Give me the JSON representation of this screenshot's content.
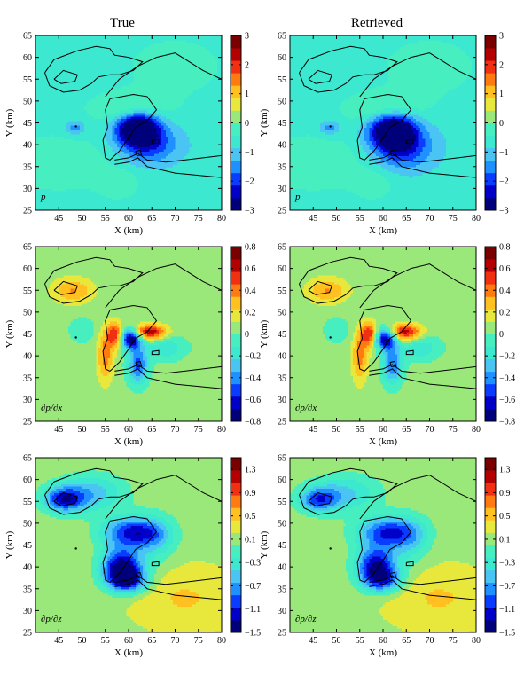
{
  "columns": [
    "True",
    "Retrieved"
  ],
  "chart_data": [
    {
      "type": "heatmap",
      "row": 0,
      "column": "True",
      "panel_label": "p",
      "xlabel": "X (km)",
      "ylabel": "Y (km)",
      "xlim": [
        40,
        80
      ],
      "ylim": [
        25,
        65
      ],
      "x_ticks": [
        "45",
        "50",
        "55",
        "60",
        "65",
        "70",
        "75",
        "80"
      ],
      "y_ticks": [
        "25",
        "30",
        "35",
        "40",
        "45",
        "50",
        "55",
        "60",
        "65"
      ],
      "colorbar": {
        "min": -3,
        "max": 3,
        "ticks": [
          "3",
          "2",
          "1",
          "0",
          "−1",
          "−2",
          "−3"
        ]
      },
      "background_value": -0.7,
      "blobs": [
        {
          "x": 62,
          "y": 44,
          "sx": 3.2,
          "sy": 2.5,
          "amp": -3.1
        },
        {
          "x": 64,
          "y": 40,
          "sx": 4.5,
          "sy": 3,
          "amp": -1.4
        },
        {
          "x": 48.5,
          "y": 44,
          "sx": 1.5,
          "sy": 1.2,
          "amp": -0.9
        },
        {
          "x": 60,
          "y": 48.5,
          "sx": 6,
          "sy": 2.5,
          "amp": 0.8
        },
        {
          "x": 45,
          "y": 36,
          "sx": 10,
          "sy": 5,
          "amp": 0.6
        },
        {
          "x": 70,
          "y": 58,
          "sx": 9,
          "sy": 6,
          "amp": 0.45
        },
        {
          "x": 58,
          "y": 31,
          "sx": 3,
          "sy": 2.5,
          "amp": 0.5
        }
      ]
    },
    {
      "type": "heatmap",
      "row": 0,
      "column": "Retrieved",
      "panel_label": "p",
      "xlabel": "X (km)",
      "ylabel": "Y (km)",
      "xlim": [
        40,
        80
      ],
      "ylim": [
        25,
        65
      ],
      "x_ticks": [
        "45",
        "50",
        "55",
        "60",
        "65",
        "70",
        "75",
        "80"
      ],
      "y_ticks": [
        "25",
        "30",
        "35",
        "40",
        "45",
        "50",
        "55",
        "60",
        "65"
      ],
      "colorbar": {
        "min": -3,
        "max": 3,
        "ticks": [
          "3",
          "2",
          "1",
          "0",
          "−1",
          "−2",
          "−3"
        ]
      },
      "background_value": -0.7,
      "blobs": [
        {
          "x": 62,
          "y": 43.5,
          "sx": 3.3,
          "sy": 2.7,
          "amp": -3.0
        },
        {
          "x": 64,
          "y": 39.5,
          "sx": 4.5,
          "sy": 3.5,
          "amp": -1.6
        },
        {
          "x": 48.5,
          "y": 44,
          "sx": 1.5,
          "sy": 1.2,
          "amp": -0.9
        },
        {
          "x": 60,
          "y": 48.5,
          "sx": 6,
          "sy": 2.5,
          "amp": 0.8
        },
        {
          "x": 45,
          "y": 36,
          "sx": 10,
          "sy": 5,
          "amp": 0.6
        },
        {
          "x": 70,
          "y": 58,
          "sx": 9,
          "sy": 6,
          "amp": 0.45
        },
        {
          "x": 58,
          "y": 31,
          "sx": 3,
          "sy": 2.5,
          "amp": 0.5
        }
      ]
    },
    {
      "type": "heatmap",
      "row": 1,
      "column": "True",
      "panel_label": "∂p/∂x",
      "xlabel": "X (km)",
      "ylabel": "Y (km)",
      "xlim": [
        40,
        80
      ],
      "ylim": [
        25,
        65
      ],
      "x_ticks": [
        "45",
        "50",
        "55",
        "60",
        "65",
        "70",
        "75",
        "80"
      ],
      "y_ticks": [
        "25",
        "30",
        "35",
        "40",
        "45",
        "50",
        "55",
        "60",
        "65"
      ],
      "colorbar": {
        "min": -0.8,
        "max": 0.8,
        "ticks": [
          "0.8",
          "0.6",
          "0.4",
          "0.2",
          "0",
          "−0.2",
          "−0.4",
          "−0.6",
          "−0.8"
        ]
      },
      "background_value": 0.05,
      "blobs": [
        {
          "x": 60.5,
          "y": 44,
          "sx": 1.5,
          "sy": 1.6,
          "amp": -0.85
        },
        {
          "x": 64.5,
          "y": 45.5,
          "sx": 2.5,
          "sy": 1.2,
          "amp": 0.65
        },
        {
          "x": 57,
          "y": 45,
          "sx": 1.2,
          "sy": 2,
          "amp": 0.5
        },
        {
          "x": 62,
          "y": 38,
          "sx": 1.5,
          "sy": 3,
          "amp": -0.55
        },
        {
          "x": 55,
          "y": 40,
          "sx": 1.2,
          "sy": 4,
          "amp": 0.35
        },
        {
          "x": 48,
          "y": 55,
          "sx": 3,
          "sy": 2,
          "amp": 0.3
        },
        {
          "x": 68,
          "y": 42,
          "sx": 3,
          "sy": 2,
          "amp": -0.25
        },
        {
          "x": 50,
          "y": 46,
          "sx": 2,
          "sy": 2,
          "amp": -0.15
        }
      ]
    },
    {
      "type": "heatmap",
      "row": 1,
      "column": "Retrieved",
      "panel_label": "∂p/∂x",
      "xlabel": "X (km)",
      "ylabel": "Y (km)",
      "xlim": [
        40,
        80
      ],
      "ylim": [
        25,
        65
      ],
      "x_ticks": [
        "45",
        "50",
        "55",
        "60",
        "65",
        "70",
        "75",
        "80"
      ],
      "y_ticks": [
        "25",
        "30",
        "35",
        "40",
        "45",
        "50",
        "55",
        "60",
        "65"
      ],
      "colorbar": {
        "min": -0.8,
        "max": 0.8,
        "ticks": [
          "0.8",
          "0.6",
          "0.4",
          "0.2",
          "0",
          "−0.2",
          "−0.4",
          "−0.6",
          "−0.8"
        ]
      },
      "background_value": 0.05,
      "blobs": [
        {
          "x": 60.5,
          "y": 44,
          "sx": 1.6,
          "sy": 1.7,
          "amp": -0.8
        },
        {
          "x": 64.5,
          "y": 45.5,
          "sx": 2.6,
          "sy": 1.3,
          "amp": 0.6
        },
        {
          "x": 57,
          "y": 45,
          "sx": 1.2,
          "sy": 2,
          "amp": 0.5
        },
        {
          "x": 62,
          "y": 38,
          "sx": 1.5,
          "sy": 3,
          "amp": -0.5
        },
        {
          "x": 55,
          "y": 40,
          "sx": 1.2,
          "sy": 4,
          "amp": 0.35
        },
        {
          "x": 48,
          "y": 55,
          "sx": 3,
          "sy": 2,
          "amp": 0.3
        },
        {
          "x": 68,
          "y": 42,
          "sx": 3,
          "sy": 2,
          "amp": -0.25
        },
        {
          "x": 50,
          "y": 46,
          "sx": 2,
          "sy": 2,
          "amp": -0.15
        }
      ]
    },
    {
      "type": "heatmap",
      "row": 2,
      "column": "True",
      "panel_label": "∂p/∂z",
      "xlabel": "X (km)",
      "ylabel": "Y (km)",
      "xlim": [
        40,
        80
      ],
      "ylim": [
        25,
        65
      ],
      "x_ticks": [
        "45",
        "50",
        "55",
        "60",
        "65",
        "70",
        "75",
        "80"
      ],
      "y_ticks": [
        "25",
        "30",
        "35",
        "40",
        "45",
        "50",
        "55",
        "60",
        "65"
      ],
      "colorbar": {
        "min": -1.5,
        "max": 1.5,
        "ticks": [
          "1.3",
          "0.9",
          "0.5",
          "0.1",
          "−0.3",
          "−0.7",
          "−1.1",
          "−1.5"
        ]
      },
      "background_value": 0.15,
      "blobs": [
        {
          "x": 58.5,
          "y": 40,
          "sx": 3,
          "sy": 3,
          "amp": -1.6
        },
        {
          "x": 61,
          "y": 48,
          "sx": 4.5,
          "sy": 2.5,
          "amp": -1.3
        },
        {
          "x": 46,
          "y": 55.5,
          "sx": 3,
          "sy": 2,
          "amp": -1.2
        },
        {
          "x": 52,
          "y": 57,
          "sx": 5,
          "sy": 3,
          "amp": -0.7
        },
        {
          "x": 60,
          "y": 37,
          "sx": 3,
          "sy": 2,
          "amp": -1.0
        },
        {
          "x": 66,
          "y": 46,
          "sx": 3,
          "sy": 4,
          "amp": -0.4
        },
        {
          "x": 72,
          "y": 33,
          "sx": 8,
          "sy": 5,
          "amp": 0.3
        }
      ]
    },
    {
      "type": "heatmap",
      "row": 2,
      "column": "Retrieved",
      "panel_label": "∂p/∂z",
      "xlabel": "X (km)",
      "ylabel": "Y (km)",
      "xlim": [
        40,
        80
      ],
      "ylim": [
        25,
        65
      ],
      "x_ticks": [
        "45",
        "50",
        "55",
        "60",
        "65",
        "70",
        "75",
        "80"
      ],
      "y_ticks": [
        "25",
        "30",
        "35",
        "40",
        "45",
        "50",
        "55",
        "60",
        "65"
      ],
      "colorbar": {
        "min": -1.5,
        "max": 1.5,
        "ticks": [
          "1.3",
          "0.9",
          "0.5",
          "0.1",
          "−0.3",
          "−0.7",
          "−1.1",
          "−1.5"
        ]
      },
      "background_value": 0.15,
      "blobs": [
        {
          "x": 58.5,
          "y": 40.5,
          "sx": 3,
          "sy": 3,
          "amp": -1.4
        },
        {
          "x": 61,
          "y": 48,
          "sx": 4.5,
          "sy": 2.5,
          "amp": -1.2
        },
        {
          "x": 46,
          "y": 55.5,
          "sx": 3,
          "sy": 2,
          "amp": -1.0
        },
        {
          "x": 52,
          "y": 57,
          "sx": 5,
          "sy": 3,
          "amp": -0.6
        },
        {
          "x": 60,
          "y": 37,
          "sx": 3,
          "sy": 2,
          "amp": -0.9
        },
        {
          "x": 66,
          "y": 46,
          "sx": 3,
          "sy": 4,
          "amp": -0.4
        },
        {
          "x": 72,
          "y": 33,
          "sx": 8,
          "sy": 5,
          "amp": 0.3
        }
      ]
    }
  ],
  "contours": [
    [
      [
        42,
        56.5
      ],
      [
        44,
        59.5
      ],
      [
        49,
        61.5
      ],
      [
        53,
        62.5
      ],
      [
        56,
        62
      ],
      [
        57,
        60.5
      ],
      [
        60,
        60
      ],
      [
        63,
        59
      ],
      [
        61,
        57
      ],
      [
        58,
        56
      ],
      [
        56,
        56
      ],
      [
        53.5,
        55.5
      ],
      [
        52,
        54
      ],
      [
        49.5,
        52.5
      ],
      [
        46,
        52
      ],
      [
        43,
        53.5
      ],
      [
        42,
        56.5
      ]
    ],
    [
      [
        44,
        55
      ],
      [
        46,
        57
      ],
      [
        49,
        56
      ],
      [
        48.5,
        54.5
      ],
      [
        45.5,
        54
      ],
      [
        44,
        55
      ]
    ],
    [
      [
        55,
        51
      ],
      [
        58,
        55
      ],
      [
        62,
        58
      ],
      [
        66,
        60
      ],
      [
        70,
        61
      ],
      [
        73,
        59
      ],
      [
        76,
        57
      ],
      [
        80,
        55
      ]
    ],
    [
      [
        56,
        50.5
      ],
      [
        61,
        51.5
      ],
      [
        64,
        51
      ],
      [
        66,
        48
      ],
      [
        64,
        45.5
      ],
      [
        61.5,
        44
      ],
      [
        60,
        41.5
      ],
      [
        58,
        38.5
      ],
      [
        56,
        36.5
      ],
      [
        55,
        37
      ],
      [
        54.5,
        41
      ],
      [
        55.5,
        44
      ],
      [
        55,
        48
      ],
      [
        56,
        50.5
      ]
    ],
    [
      [
        57,
        36.5
      ],
      [
        60,
        37
      ],
      [
        62,
        38
      ],
      [
        64,
        36.5
      ],
      [
        68,
        36
      ],
      [
        72,
        36.5
      ],
      [
        80,
        37.5
      ]
    ],
    [
      [
        57,
        35.5
      ],
      [
        60,
        36
      ],
      [
        62,
        37
      ],
      [
        64,
        35
      ],
      [
        70,
        33.5
      ],
      [
        75,
        33
      ],
      [
        80,
        32.5
      ]
    ],
    [
      [
        65,
        41
      ],
      [
        66.5,
        41.2
      ],
      [
        66.5,
        40.3
      ],
      [
        65,
        40.3
      ],
      [
        65,
        41
      ]
    ],
    [
      [
        61.5,
        38.5
      ],
      [
        62.5,
        38.7
      ],
      [
        62.8,
        37.6
      ],
      [
        61.8,
        37.5
      ],
      [
        61.5,
        38.5
      ]
    ]
  ],
  "colors": {
    "palette": [
      "#00007a",
      "#0000c8",
      "#0a3cff",
      "#1e90ff",
      "#4ac4f2",
      "#3ce8d0",
      "#46eec0",
      "#9ae87a",
      "#e8e83c",
      "#ffc020",
      "#ff7a10",
      "#f03010",
      "#b40000",
      "#7a0000"
    ]
  }
}
